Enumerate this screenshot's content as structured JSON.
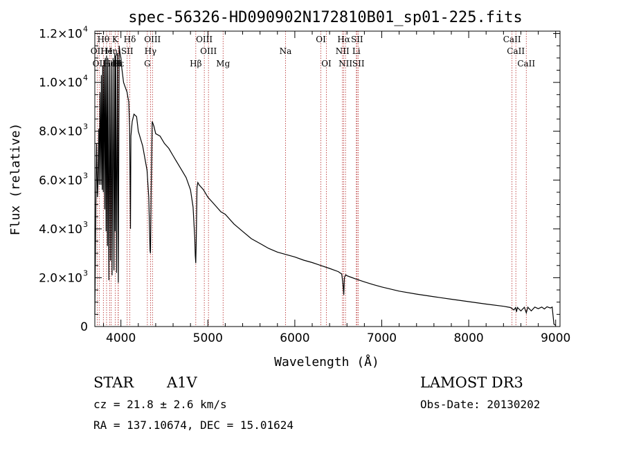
{
  "chart_data": {
    "type": "line",
    "title": "spec-56326-HD090902N172810B01_sp01-225.fits",
    "xlabel": "Wavelength (Å)",
    "ylabel": "Flux (relative)",
    "xlim": [
      3700,
      9050
    ],
    "ylim": [
      0,
      12100
    ],
    "x_ticks": [
      {
        "value": 4000,
        "label": "4000"
      },
      {
        "value": 5000,
        "label": "5000"
      },
      {
        "value": 6000,
        "label": "6000"
      },
      {
        "value": 7000,
        "label": "7000"
      },
      {
        "value": 8000,
        "label": "8000"
      },
      {
        "value": 9000,
        "label": "9000"
      }
    ],
    "y_ticks": [
      {
        "value": 0,
        "label": "0",
        "exp": ""
      },
      {
        "value": 2000,
        "label": "2.0×10",
        "exp": "3"
      },
      {
        "value": 4000,
        "label": "4.0×10",
        "exp": "3"
      },
      {
        "value": 6000,
        "label": "6.0×10",
        "exp": "3"
      },
      {
        "value": 8000,
        "label": "8.0×10",
        "exp": "3"
      },
      {
        "value": 10000,
        "label": "1.0×10",
        "exp": "4"
      },
      {
        "value": 12000,
        "label": "1.2×10",
        "exp": "4"
      }
    ],
    "x_minor_step": 200,
    "y_minor_step": 500,
    "series": [
      {
        "name": "spectrum",
        "x": [
          3700,
          3710,
          3720,
          3730,
          3738,
          3745,
          3752,
          3760,
          3770,
          3775,
          3785,
          3790,
          3798,
          3805,
          3815,
          3820,
          3830,
          3835,
          3845,
          3850,
          3862,
          3870,
          3880,
          3889,
          3898,
          3910,
          3920,
          3930,
          3934,
          3940,
          3950,
          3960,
          3970,
          3980,
          3990,
          4000,
          4010,
          4030,
          4050,
          4070,
          4090,
          4100,
          4110,
          4115,
          4130,
          4150,
          4180,
          4200,
          4250,
          4300,
          4320,
          4335,
          4340,
          4348,
          4360,
          4380,
          4400,
          4450,
          4500,
          4550,
          4600,
          4650,
          4700,
          4750,
          4800,
          4830,
          4850,
          4855,
          4861,
          4866,
          4875,
          4885,
          4900,
          4950,
          5000,
          5050,
          5100,
          5150,
          5200,
          5300,
          5400,
          5500,
          5600,
          5700,
          5800,
          5900,
          6000,
          6100,
          6200,
          6300,
          6400,
          6500,
          6540,
          6555,
          6563,
          6570,
          6585,
          6600,
          6700,
          6800,
          6900,
          7000,
          7200,
          7400,
          7600,
          7800,
          8000,
          8200,
          8400,
          8480,
          8520,
          8540,
          8550,
          8560,
          8600,
          8640,
          8662,
          8680,
          8720,
          8760,
          8800,
          8840,
          8870,
          8900,
          8940,
          8960,
          8980,
          9000
        ],
        "y": [
          500,
          4600,
          7500,
          5300,
          6100,
          8100,
          5800,
          9600,
          5800,
          10300,
          5600,
          10700,
          5500,
          10900,
          4800,
          11000,
          3900,
          11100,
          3300,
          11000,
          1900,
          10800,
          2700,
          10900,
          2100,
          11000,
          2300,
          11200,
          3900,
          11100,
          2200,
          11200,
          1800,
          11500,
          11200,
          11000,
          10600,
          10000,
          9800,
          9600,
          9200,
          8200,
          4000,
          7800,
          8400,
          8700,
          8600,
          8000,
          7400,
          6400,
          5300,
          3100,
          3000,
          5600,
          8400,
          8200,
          7900,
          7800,
          7500,
          7300,
          7000,
          6700,
          6400,
          6100,
          5600,
          4900,
          3600,
          2900,
          2600,
          3500,
          5700,
          5900,
          5800,
          5600,
          5300,
          5100,
          4900,
          4700,
          4600,
          4200,
          3900,
          3600,
          3400,
          3200,
          3050,
          2950,
          2850,
          2720,
          2620,
          2500,
          2380,
          2250,
          2150,
          1700,
          1300,
          2000,
          2120,
          2080,
          1950,
          1830,
          1720,
          1620,
          1450,
          1330,
          1220,
          1120,
          1020,
          920,
          830,
          780,
          680,
          780,
          600,
          780,
          640,
          790,
          560,
          790,
          640,
          800,
          730,
          800,
          720,
          810,
          760,
          800,
          100,
          50
        ]
      }
    ],
    "lines": [
      {
        "wl": 3727,
        "label": "OII",
        "row": 2
      },
      {
        "wl": 3750,
        "label": "OII",
        "row": 3
      },
      {
        "wl": 3798,
        "label": "Hθ",
        "row": 1
      },
      {
        "wl": 3835,
        "label": "He",
        "row": 2
      },
      {
        "wl": 3870,
        "label": "He",
        "row": 3
      },
      {
        "wl": 3889,
        "label": "Hη",
        "row": 2
      },
      {
        "wl": 3934,
        "label": "K",
        "row": 1
      },
      {
        "wl": 3968,
        "label": "H",
        "row": 3
      },
      {
        "wl": 3970,
        "label": "Hε",
        "row": 3
      },
      {
        "wl": 4072,
        "label": "SII",
        "row": 2
      },
      {
        "wl": 4102,
        "label": "Hδ",
        "row": 1
      },
      {
        "wl": 4304,
        "label": "G",
        "row": 3
      },
      {
        "wl": 4340,
        "label": "Hγ",
        "row": 2
      },
      {
        "wl": 4363,
        "label": "OIII",
        "row": 1
      },
      {
        "wl": 4861,
        "label": "Hβ",
        "row": 3
      },
      {
        "wl": 4959,
        "label": "OIII",
        "row": 1
      },
      {
        "wl": 5007,
        "label": "OIII",
        "row": 2
      },
      {
        "wl": 5175,
        "label": "Mg",
        "row": 3
      },
      {
        "wl": 5893,
        "label": "Na",
        "row": 2
      },
      {
        "wl": 6300,
        "label": "OI",
        "row": 1
      },
      {
        "wl": 6363,
        "label": "OI",
        "row": 3
      },
      {
        "wl": 6548,
        "label": "NII",
        "row": 2
      },
      {
        "wl": 6563,
        "label": "Hα",
        "row": 1
      },
      {
        "wl": 6583,
        "label": "NII",
        "row": 3
      },
      {
        "wl": 6708,
        "label": "Li",
        "row": 2
      },
      {
        "wl": 6716,
        "label": "SII",
        "row": 1
      },
      {
        "wl": 6731,
        "label": "SII",
        "row": 3
      },
      {
        "wl": 8498,
        "label": "CaII",
        "row": 1
      },
      {
        "wl": 8542,
        "label": "CaII",
        "row": 2
      },
      {
        "wl": 8662,
        "label": "CaII",
        "row": 3
      }
    ]
  },
  "info": {
    "class": "STAR",
    "subclass": "A1V",
    "survey": "LAMOST DR3",
    "cz": "cz = 21.8 ± 2.6 km/s",
    "obs_date": "Obs-Date: 20130202",
    "coords": "RA = 137.10674, DEC =  15.01624"
  },
  "colors": {
    "spectrum": "#000000",
    "line_marker": "#b22222",
    "axis": "#000000"
  }
}
